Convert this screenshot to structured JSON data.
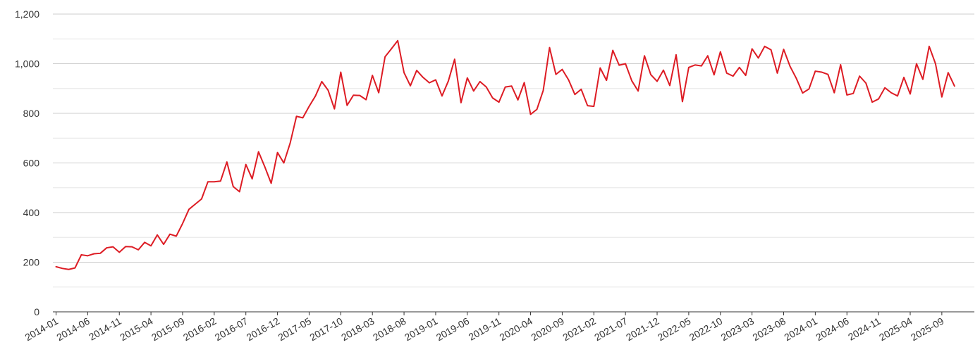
{
  "colors": {
    "line": "#dd1c24",
    "grid": "#cccccc",
    "axis": "#333333",
    "text": "#333333"
  },
  "chart_data": {
    "type": "line",
    "title": "",
    "xlabel": "",
    "ylabel": "",
    "ylim": [
      0,
      1200
    ],
    "y_ticks": [
      0,
      200,
      400,
      600,
      800,
      1000,
      1200
    ],
    "y_tick_labels": [
      "0",
      "200",
      "400",
      "600",
      "800",
      "1,000",
      "1,200"
    ],
    "x_tick_labels": [
      "2014-01",
      "2014-06",
      "2014-11",
      "2015-04",
      "2015-09",
      "2016-02",
      "2016-07",
      "2016-12",
      "2017-05",
      "2017-10",
      "2018-03",
      "2018-08",
      "2019-01",
      "2019-06",
      "2019-11",
      "2020-04",
      "2020-09",
      "2021-02",
      "2021-07",
      "2021-12",
      "2022-05",
      "2022-10",
      "2023-03",
      "2023-08",
      "2024-01",
      "2024-06",
      "2024-11",
      "2025-04",
      "2025-09"
    ],
    "x_start": "2014-01",
    "x_end": "2025-11",
    "grid": true,
    "legend": "none",
    "series": [
      {
        "values": [
          182,
          175,
          171,
          177,
          230,
          226,
          234,
          236,
          258,
          262,
          240,
          263,
          262,
          250,
          280,
          266,
          310,
          272,
          313,
          305,
          356,
          413,
          434,
          455,
          524,
          524,
          527,
          604,
          505,
          484,
          594,
          536,
          645,
          584,
          518,
          642,
          600,
          680,
          788,
          782,
          828,
          870,
          928,
          893,
          818,
          966,
          832,
          873,
          872,
          855,
          953,
          883,
          1028,
          1060,
          1093,
          964,
          911,
          973,
          945,
          923,
          935,
          870,
          930,
          1018,
          843,
          943,
          890,
          928,
          906,
          862,
          845,
          906,
          910,
          854,
          924,
          796,
          816,
          892,
          1065,
          957,
          977,
          935,
          876,
          897,
          831,
          828,
          983,
          933,
          1054,
          994,
          1000,
          931,
          890,
          1032,
          956,
          929,
          974,
          912,
          1036,
          847,
          985,
          995,
          991,
          1032,
          955,
          1048,
          962,
          950,
          985,
          953,
          1060,
          1023,
          1070,
          1056,
          962,
          1058,
          990,
          941,
          882,
          898,
          970,
          966,
          957,
          883,
          996,
          874,
          880,
          950,
          922,
          845,
          858,
          903,
          883,
          870,
          945,
          878,
          1000,
          937,
          1070,
          1000,
          866,
          964,
          910
        ]
      }
    ]
  }
}
